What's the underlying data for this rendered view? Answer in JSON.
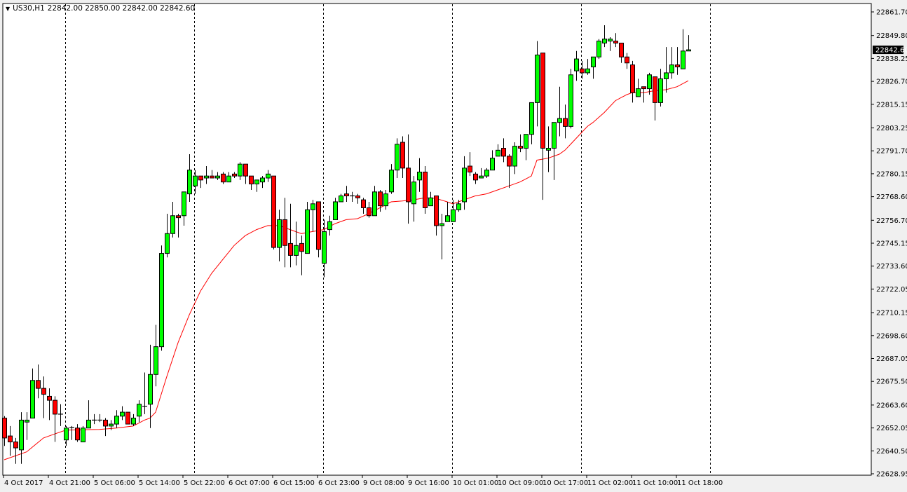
{
  "header": {
    "menu_icon": "triangle-down-icon",
    "symbol": "US30,H1",
    "ohlc": "22842.00 22850.00 22842.00 22842.60"
  },
  "colors": {
    "bull": "#00ff00",
    "bear": "#ff0000",
    "ma": "#ff0000",
    "outline": "#000000",
    "background": "#ffffff"
  },
  "chart_data": {
    "type": "candlestick",
    "title": "US30,H1",
    "ylim": [
      22628.95,
      22861.7
    ],
    "grid": false,
    "current_price": "22842.60",
    "y_ticks": [
      "22861.70",
      "22849.80",
      "22838.25",
      "22826.70",
      "22815.15",
      "22803.25",
      "22791.70",
      "22780.15",
      "22768.60",
      "22756.70",
      "22745.15",
      "22733.60",
      "22722.05",
      "22710.15",
      "22698.60",
      "22687.05",
      "22675.50",
      "22663.60",
      "22652.05",
      "22640.50",
      "22628.95"
    ],
    "x_labels": [
      {
        "bar": 0,
        "label": "4 Oct 2017"
      },
      {
        "bar": 8,
        "label": "4 Oct 21:00"
      },
      {
        "bar": 16,
        "label": "5 Oct 06:00"
      },
      {
        "bar": 24,
        "label": "5 Oct 14:00"
      },
      {
        "bar": 32,
        "label": "5 Oct 22:00"
      },
      {
        "bar": 40,
        "label": "6 Oct 07:00"
      },
      {
        "bar": 48,
        "label": "6 Oct 15:00"
      },
      {
        "bar": 56,
        "label": "6 Oct 23:00"
      },
      {
        "bar": 64,
        "label": "9 Oct 08:00"
      },
      {
        "bar": 72,
        "label": "9 Oct 16:00"
      },
      {
        "bar": 80,
        "label": "10 Oct 01:00"
      },
      {
        "bar": 88,
        "label": "10 Oct 09:00"
      },
      {
        "bar": 96,
        "label": "10 Oct 17:00"
      },
      {
        "bar": 104,
        "label": "11 Oct 02:00"
      },
      {
        "bar": 112,
        "label": "11 Oct 10:00"
      },
      {
        "bar": 120,
        "label": "11 Oct 18:00"
      }
    ],
    "period_separator_bars": [
      11,
      34,
      57,
      80,
      103,
      126
    ],
    "candles_ohlc": [
      [
        22657,
        22658,
        22643,
        22647
      ],
      [
        22648,
        22653,
        22638,
        22645
      ],
      [
        22645,
        22647,
        22634,
        22642
      ],
      [
        22641,
        22660,
        22634,
        22656
      ],
      [
        22655,
        22660,
        22646,
        22656
      ],
      [
        22657,
        22682,
        22657,
        22676
      ],
      [
        22676,
        22684,
        22667,
        22672
      ],
      [
        22672,
        22678,
        22657,
        22669
      ],
      [
        22668,
        22672,
        22656,
        22666
      ],
      [
        22666,
        22668,
        22645,
        22659
      ],
      [
        22659,
        22664,
        22653,
        22659
      ],
      [
        22646,
        22653,
        22643,
        22652
      ],
      [
        22652,
        22653,
        22646,
        22652.3
      ],
      [
        22652,
        22654,
        22645,
        22646
      ],
      [
        22645,
        22653,
        22645,
        22652
      ],
      [
        22652,
        22666,
        22652,
        22656
      ],
      [
        22656,
        22659,
        22654,
        22656
      ],
      [
        22656,
        22659,
        22655,
        22656
      ],
      [
        22656,
        22657,
        22648,
        22653
      ],
      [
        22653,
        22656,
        22651,
        22654
      ],
      [
        22654,
        22661,
        22652,
        22658
      ],
      [
        22658,
        22663,
        22656,
        22660
      ],
      [
        22660,
        22660,
        22654,
        22654
      ],
      [
        22654,
        22659,
        22653,
        22657
      ],
      [
        22658,
        22666,
        22655,
        22664
      ],
      [
        22663,
        22680,
        22659,
        22663
      ],
      [
        22664,
        22694,
        22652,
        22679
      ],
      [
        22679,
        22704,
        22673,
        22693
      ],
      [
        22693,
        22744,
        22691,
        22740
      ],
      [
        22740,
        22760,
        22738,
        22750
      ],
      [
        22750,
        22766,
        22748,
        22759
      ],
      [
        22759,
        22760,
        22748,
        22758
      ],
      [
        22759,
        22771,
        22754,
        22771
      ],
      [
        22770,
        22790,
        22766,
        22782
      ],
      [
        22774,
        22782,
        22770,
        22779
      ],
      [
        22779,
        22779,
        22773,
        22777
      ],
      [
        22778,
        22784,
        22775,
        22779
      ],
      [
        22779,
        22782,
        22778,
        22778
      ],
      [
        22778,
        22781,
        22777,
        22779
      ],
      [
        22780,
        22781,
        22775,
        22776
      ],
      [
        22776,
        22781,
        22776,
        22779
      ],
      [
        22780,
        22781,
        22778,
        22779
      ],
      [
        22779,
        22786,
        22777,
        22785
      ],
      [
        22785,
        22785,
        22775,
        22779
      ],
      [
        22779,
        22779,
        22772,
        22775
      ],
      [
        22775,
        22777,
        22771,
        22777
      ],
      [
        22776,
        22779,
        22773,
        22778
      ],
      [
        22778,
        22782,
        22776,
        22780
      ],
      [
        22779,
        22779,
        22742,
        22743
      ],
      [
        22743,
        22762,
        22736,
        22757
      ],
      [
        22757,
        22768,
        22733,
        22744
      ],
      [
        22745,
        22765,
        22733,
        22739
      ],
      [
        22739,
        22756,
        22734,
        22744
      ],
      [
        22745,
        22749,
        22729,
        22741
      ],
      [
        22740,
        22766,
        22740,
        22762
      ],
      [
        22762,
        22767,
        22751,
        22765
      ],
      [
        22766,
        22766,
        22738,
        22742
      ],
      [
        22735,
        22757,
        22728,
        22751
      ],
      [
        22752,
        22759,
        22749,
        22756
      ],
      [
        22757,
        22768,
        22757,
        22766
      ],
      [
        22766,
        22770,
        22766,
        22769
      ],
      [
        22770,
        22774,
        22766,
        22769
      ],
      [
        22769,
        22771,
        22766,
        22769
      ],
      [
        22769,
        22770,
        22765,
        22768
      ],
      [
        22767,
        22768,
        22760,
        22763
      ],
      [
        22763,
        22766,
        22758,
        22759
      ],
      [
        22759,
        22774,
        22759,
        22771
      ],
      [
        22771,
        22772,
        22761,
        22764
      ],
      [
        22764,
        22772,
        22762,
        22770
      ],
      [
        22771,
        22785,
        22770,
        22782
      ],
      [
        22782,
        22798,
        22778,
        22795
      ],
      [
        22796,
        22799,
        22778,
        22783
      ],
      [
        22783,
        22800,
        22755,
        22766
      ],
      [
        22765,
        22779,
        22756,
        22776
      ],
      [
        22777,
        22788,
        22771,
        22781
      ],
      [
        22781,
        22784,
        22760,
        22763
      ],
      [
        22764,
        22771,
        22764,
        22768
      ],
      [
        22769,
        22769,
        22749,
        22754
      ],
      [
        22754,
        22760,
        22737,
        22755
      ],
      [
        22756,
        22766,
        22756,
        22759
      ],
      [
        22756,
        22767,
        22756,
        22762
      ],
      [
        22762,
        22767,
        22761,
        22765
      ],
      [
        22766,
        22789,
        22762,
        22783
      ],
      [
        22784,
        22791,
        22779,
        22781
      ],
      [
        22780,
        22781,
        22775,
        22777
      ],
      [
        22778,
        22783,
        22778,
        22779
      ],
      [
        22779,
        22783,
        22778,
        22782
      ],
      [
        22782,
        22792,
        22782,
        22788
      ],
      [
        22789,
        22795,
        22789,
        22792
      ],
      [
        22793,
        22798,
        22786,
        22789
      ],
      [
        22789,
        22790,
        22773,
        22784
      ],
      [
        22784,
        22796,
        22780,
        22794
      ],
      [
        22794,
        22800,
        22791,
        22793
      ],
      [
        22793,
        22800,
        22787,
        22800
      ],
      [
        22800,
        22816,
        22795,
        22816
      ],
      [
        22816,
        22847,
        22804,
        22840
      ],
      [
        22841,
        22841,
        22767,
        22793
      ],
      [
        22792,
        22804,
        22781,
        22793
      ],
      [
        22793,
        22806,
        22777,
        22806
      ],
      [
        22806,
        22824,
        22799,
        22808
      ],
      [
        22808,
        22815,
        22798,
        22804
      ],
      [
        22804,
        22833,
        22803,
        22830
      ],
      [
        22832,
        22842,
        22827,
        22838
      ],
      [
        22833,
        22837,
        22828,
        22831
      ],
      [
        22831,
        22838,
        22830,
        22833
      ],
      [
        22834,
        22839,
        22828,
        22839
      ],
      [
        22839,
        22848,
        22838,
        22847
      ],
      [
        22846,
        22855,
        22844,
        22848
      ],
      [
        22847,
        22849,
        22842,
        22848
      ],
      [
        22847,
        22851,
        22844,
        22846
      ],
      [
        22846,
        22846,
        22836,
        22839
      ],
      [
        22839,
        22841,
        22833,
        22836
      ],
      [
        22835,
        22837,
        22816,
        22821
      ],
      [
        22819,
        22828,
        22819,
        22823
      ],
      [
        22824,
        22824,
        22816,
        22823
      ],
      [
        22823,
        22831,
        22820,
        22830
      ],
      [
        22829,
        22829,
        22807,
        22816
      ],
      [
        22816,
        22833,
        22814,
        22828
      ],
      [
        22828,
        22844,
        22821,
        22831
      ],
      [
        22831,
        22844,
        22828,
        22835
      ],
      [
        22835,
        22844,
        22830,
        22834
      ],
      [
        22833,
        22853,
        22833,
        22842
      ],
      [
        22842.0,
        22850.0,
        22842.0,
        22842.6
      ]
    ],
    "moving_average": [
      {
        "bar": 0,
        "value": 22636
      },
      {
        "bar": 4,
        "value": 22640
      },
      {
        "bar": 7,
        "value": 22647
      },
      {
        "bar": 9,
        "value": 22649
      },
      {
        "bar": 11,
        "value": 22651
      },
      {
        "bar": 17,
        "value": 22651.3
      },
      {
        "bar": 20,
        "value": 22652
      },
      {
        "bar": 23,
        "value": 22653
      },
      {
        "bar": 25,
        "value": 22656
      },
      {
        "bar": 26,
        "value": 22657
      },
      {
        "bar": 27,
        "value": 22660
      },
      {
        "bar": 29,
        "value": 22678
      },
      {
        "bar": 31,
        "value": 22695
      },
      {
        "bar": 33,
        "value": 22709
      },
      {
        "bar": 35,
        "value": 22721
      },
      {
        "bar": 37,
        "value": 22730
      },
      {
        "bar": 39,
        "value": 22737
      },
      {
        "bar": 41,
        "value": 22744
      },
      {
        "bar": 43,
        "value": 22749
      },
      {
        "bar": 45,
        "value": 22752
      },
      {
        "bar": 47,
        "value": 22754
      },
      {
        "bar": 49,
        "value": 22754
      },
      {
        "bar": 51,
        "value": 22752
      },
      {
        "bar": 53,
        "value": 22750
      },
      {
        "bar": 55,
        "value": 22751
      },
      {
        "bar": 57,
        "value": 22752
      },
      {
        "bar": 59,
        "value": 22755
      },
      {
        "bar": 61,
        "value": 22757
      },
      {
        "bar": 63,
        "value": 22757.5
      },
      {
        "bar": 65,
        "value": 22760
      },
      {
        "bar": 67,
        "value": 22763
      },
      {
        "bar": 69,
        "value": 22766
      },
      {
        "bar": 71,
        "value": 22766.4
      },
      {
        "bar": 73,
        "value": 22767
      },
      {
        "bar": 75,
        "value": 22768
      },
      {
        "bar": 77,
        "value": 22767.7
      },
      {
        "bar": 79,
        "value": 22766
      },
      {
        "bar": 80,
        "value": 22765
      },
      {
        "bar": 81,
        "value": 22766
      },
      {
        "bar": 82,
        "value": 22767
      },
      {
        "bar": 84,
        "value": 22769
      },
      {
        "bar": 86,
        "value": 22770
      },
      {
        "bar": 88,
        "value": 22772
      },
      {
        "bar": 90,
        "value": 22774
      },
      {
        "bar": 92,
        "value": 22776
      },
      {
        "bar": 94,
        "value": 22779
      },
      {
        "bar": 95,
        "value": 22787
      },
      {
        "bar": 97,
        "value": 22788
      },
      {
        "bar": 99,
        "value": 22790
      },
      {
        "bar": 100,
        "value": 22792
      },
      {
        "bar": 101,
        "value": 22795
      },
      {
        "bar": 102,
        "value": 22798
      },
      {
        "bar": 103,
        "value": 22801
      },
      {
        "bar": 104,
        "value": 22804
      },
      {
        "bar": 105,
        "value": 22806
      },
      {
        "bar": 107,
        "value": 22811
      },
      {
        "bar": 109,
        "value": 22817
      },
      {
        "bar": 111,
        "value": 22820
      },
      {
        "bar": 112,
        "value": 22821
      },
      {
        "bar": 114,
        "value": 22821
      },
      {
        "bar": 116,
        "value": 22822
      },
      {
        "bar": 118,
        "value": 22822.5
      },
      {
        "bar": 120,
        "value": 22824
      },
      {
        "bar": 122,
        "value": 22827
      }
    ]
  }
}
